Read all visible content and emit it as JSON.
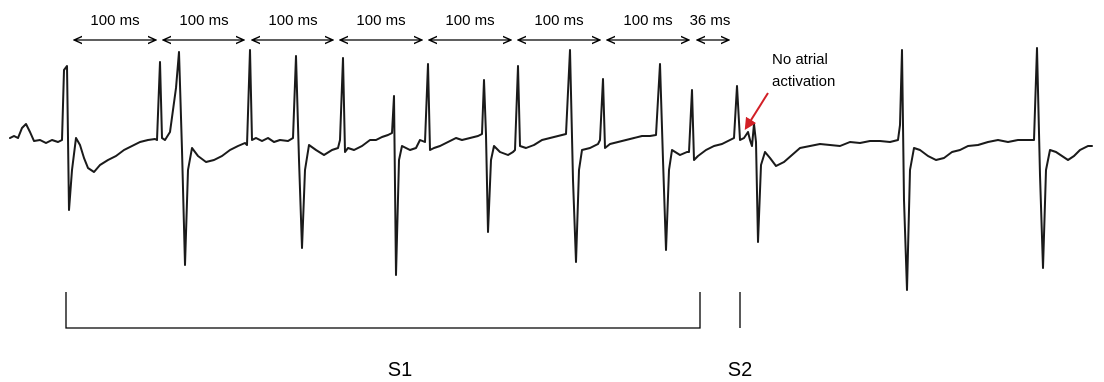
{
  "intervals": [
    {
      "label": "100 ms"
    },
    {
      "label": "100 ms"
    },
    {
      "label": "100 ms"
    },
    {
      "label": "100 ms"
    },
    {
      "label": "100 ms"
    },
    {
      "label": "100 ms"
    },
    {
      "label": "100 ms"
    },
    {
      "label": "36 ms"
    }
  ],
  "annotation": {
    "line1": "No atrial",
    "line2": "activation",
    "arrow_color": "#d21f26"
  },
  "stimuli": {
    "s1": "S1",
    "s2": "S2"
  },
  "trace_color": "#1a1a1a"
}
